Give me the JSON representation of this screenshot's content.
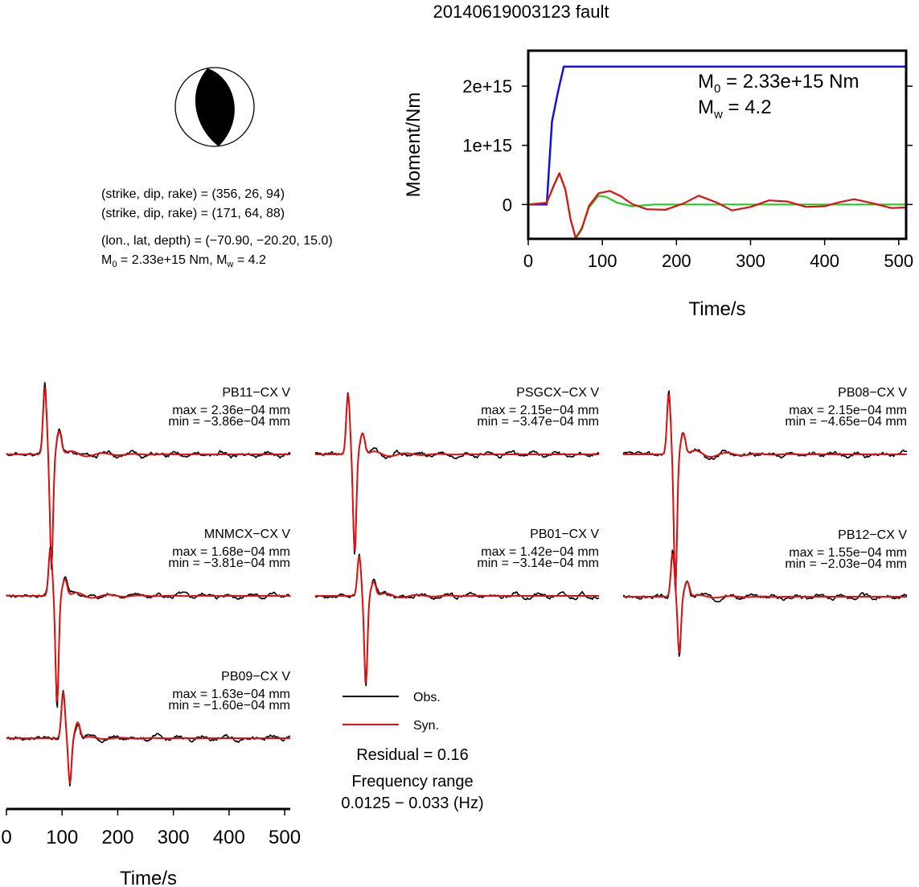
{
  "figure_title": "20140619003123 fault",
  "focal": {
    "line1": "(strike, dip, rake) = (356, 26, 94)",
    "line2": "(strike, dip, rake) = (171, 64, 88)",
    "line3": "(lon., lat, depth) = (−70.90, −20.20, 15.0)",
    "m0_prefix": "M",
    "m0_sub": "0",
    "m0_rest": " = 2.33e+15 Nm, M",
    "mw_sub": "w",
    "mw_rest": " = 4.2"
  },
  "moment": {
    "ylabel": "Moment/Nm",
    "xlabel": "Time/s",
    "m0_sym": "M",
    "m0_sub": "0",
    "m0_text": " = 2.33e+15 Nm",
    "mw_sym": "M",
    "mw_sub": "w",
    "mw_text": " = 4.2"
  },
  "legend": {
    "obs": "Obs.",
    "syn": "Syn.",
    "residual": "Residual = 0.16",
    "freq_label": "Frequency range",
    "freq_value": "0.0125 − 0.033 (Hz)"
  },
  "colors": {
    "observed": "#000000",
    "synthetic": "#dd1111",
    "cumulative_moment": "#1111dd",
    "moment_rate_green": "#22cc22",
    "moment_rate_red": "#dd1111",
    "beachball_fill": "#000000"
  },
  "chart_data": [
    {
      "type": "line",
      "id": "moment",
      "xlabel": "Time/s",
      "ylabel": "Moment/Nm",
      "xlim": [
        0,
        510
      ],
      "ylim": [
        -580000000000000.0,
        2600000000000000.0
      ],
      "xticks": [
        0,
        100,
        200,
        300,
        400,
        500
      ],
      "xtick_labels": [
        "0",
        "100",
        "200",
        "300",
        "400",
        "500"
      ],
      "yticks": [
        0,
        1000000000000000.0,
        2000000000000000.0
      ],
      "ytick_labels": [
        "0",
        "1e+15",
        "2e+15"
      ],
      "series": [
        {
          "color": "#1111dd",
          "x": [
            0,
            25,
            32,
            40,
            48,
            510
          ],
          "y": [
            0,
            0,
            1400000000000000.0,
            1900000000000000.0,
            2330000000000000.0,
            2330000000000000.0
          ]
        },
        {
          "color": "#22cc22",
          "x": [
            0,
            25,
            35,
            42,
            50,
            57,
            64,
            72,
            82,
            95,
            105,
            120,
            140,
            170,
            200,
            300,
            400,
            510
          ],
          "y": [
            0,
            30000000000000.0,
            330000000000000.0,
            520000000000000.0,
            250000000000000.0,
            -250000000000000.0,
            -560000000000000.0,
            -400000000000000.0,
            -50000000000000.0,
            150000000000000.0,
            130000000000000.0,
            30000000000000.0,
            -30000000000000.0,
            0.0,
            0,
            0,
            0,
            0
          ]
        },
        {
          "color": "#dd1111",
          "x": [
            0,
            25,
            35,
            42,
            50,
            57,
            64,
            72,
            82,
            95,
            110,
            125,
            140,
            160,
            185,
            210,
            230,
            255,
            275,
            300,
            325,
            350,
            375,
            400,
            420,
            440,
            465,
            490,
            510
          ],
          "y": [
            0,
            30000000000000.0,
            340000000000000.0,
            530000000000000.0,
            260000000000000.0,
            -240000000000000.0,
            -570000000000000.0,
            -420000000000000.0,
            -20000000000000.0,
            190000000000000.0,
            230000000000000.0,
            140000000000000.0,
            10000000000000.0,
            -80000000000000.0,
            -90000000000000.0,
            20000000000000.0,
            150000000000000.0,
            30000000000000.0,
            -100000000000000.0,
            -40000000000000.0,
            70000000000000.0,
            50000000000000.0,
            -40000000000000.0,
            -30000000000000.0,
            40000000000000.0,
            90000000000000.0,
            20000000000000.0,
            -60000000000000.0,
            -50000000000000.0
          ]
        }
      ]
    },
    {
      "type": "line",
      "id": "PB11",
      "station": "PB11−CX V",
      "max_text": "max = 2.36e−04 mm",
      "min_text": "min = −3.86e−04 mm",
      "xlim": [
        0,
        510
      ],
      "pulse_time": 75,
      "amp_max": 0.000236,
      "amp_min": -0.000386,
      "seed": 11
    },
    {
      "type": "line",
      "id": "PSGCX",
      "station": "PSGCX−CX V",
      "max_text": "max = 2.15e−04 mm",
      "min_text": "min = −3.47e−04 mm",
      "xlim": [
        0,
        510
      ],
      "pulse_time": 65,
      "amp_max": 0.000215,
      "amp_min": -0.000347,
      "seed": 23
    },
    {
      "type": "line",
      "id": "PB08",
      "station": "PB08−CX V",
      "max_text": "max = 2.15e−04 mm",
      "min_text": "min = −4.65e−04 mm",
      "xlim": [
        0,
        510
      ],
      "pulse_time": 88,
      "amp_max": 0.000215,
      "amp_min": -0.000465,
      "seed": 37
    },
    {
      "type": "line",
      "id": "MNMCX",
      "station": "MNMCX−CX V",
      "max_text": "max = 1.68e−04 mm",
      "min_text": "min = −3.81e−04 mm",
      "xlim": [
        0,
        510
      ],
      "pulse_time": 85,
      "amp_max": 0.000168,
      "amp_min": -0.000381,
      "seed": 41
    },
    {
      "type": "line",
      "id": "PB01",
      "station": "PB01−CX V",
      "max_text": "max = 1.42e−04 mm",
      "min_text": "min = −3.14e−04 mm",
      "xlim": [
        0,
        510
      ],
      "pulse_time": 85,
      "amp_max": 0.000142,
      "amp_min": -0.000314,
      "seed": 53
    },
    {
      "type": "line",
      "id": "PB12",
      "station": "PB12−CX V",
      "max_text": "max = 1.55e−04 mm",
      "min_text": "min = −2.03e−04 mm",
      "xlim": [
        0,
        510
      ],
      "pulse_time": 95,
      "amp_max": 0.000155,
      "amp_min": -0.000203,
      "seed": 67
    },
    {
      "type": "line",
      "id": "PB09",
      "station": "PB09−CX V",
      "max_text": "max = 1.63e−04 mm",
      "min_text": "min = −1.60e−04 mm",
      "xlim": [
        0,
        510
      ],
      "xlabel": "Time/s",
      "xticks": [
        0,
        100,
        200,
        300,
        400,
        500
      ],
      "xtick_labels": [
        "0",
        "100",
        "200",
        "300",
        "400",
        "500"
      ],
      "pulse_time": 108,
      "amp_max": 0.000163,
      "amp_min": -0.00016,
      "seed": 79
    }
  ]
}
